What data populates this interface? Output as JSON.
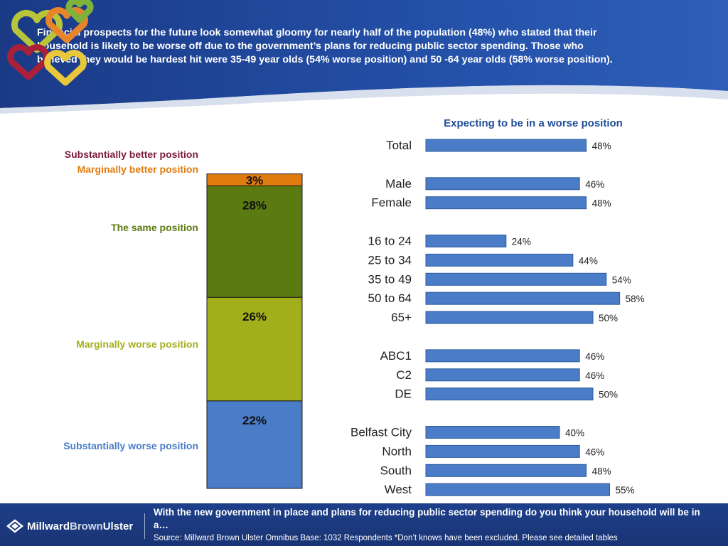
{
  "header": {
    "headline": "Financial prospects for the future look somewhat gloomy for nearly half of the population (48%) who stated that their household is likely to be worse off due to the government’s plans for reducing public sector spending.  Those who believed they would be hardest hit were 35-49 year olds (54% worse position) and 50 -64 year olds (58% worse position)."
  },
  "colors": {
    "substantially_better": "#7b1a3a",
    "marginally_better": "#e07b10",
    "same": "#5b7a12",
    "marginally_worse": "#a3af1a",
    "substantially_worse": "#4a7cc7",
    "bar_fill": "#4a7cc7",
    "header_blue": "#1d3f8a"
  },
  "chart_data": [
    {
      "type": "bar",
      "orientation": "stacked-vertical",
      "categories": [
        "Substantially worse position",
        "Marginally worse position",
        "The same position",
        "Marginally better position",
        "Substantially better position"
      ],
      "values": [
        22,
        26,
        28,
        3,
        0
      ],
      "value_labels": [
        "22%",
        "26%",
        "28%",
        "3%",
        ""
      ],
      "legend_labels": [
        "Substantially worse position",
        "Marginally worse position",
        "The same position",
        "Marginally better position",
        "Substantially better position"
      ],
      "legend": "left"
    },
    {
      "type": "bar",
      "orientation": "horizontal",
      "title": "Expecting to be in a worse position",
      "groups": [
        {
          "categories": [
            "Total"
          ],
          "values": [
            48
          ]
        },
        {
          "categories": [
            "Male",
            "Female"
          ],
          "values": [
            46,
            48
          ]
        },
        {
          "categories": [
            "16 to 24",
            "25 to 34",
            "35 to 49",
            "50 to 64",
            "65+"
          ],
          "values": [
            24,
            44,
            54,
            58,
            50
          ]
        },
        {
          "categories": [
            "ABC1",
            "C2",
            "DE"
          ],
          "values": [
            46,
            46,
            50
          ]
        },
        {
          "categories": [
            "Belfast City",
            "North",
            "South",
            "West"
          ],
          "values": [
            40,
            46,
            48,
            55
          ]
        }
      ],
      "value_labels": [
        "48%",
        "46%",
        "48%",
        "24%",
        "44%",
        "54%",
        "58%",
        "50%",
        "46%",
        "46%",
        "50%",
        "40%",
        "46%",
        "48%",
        "55%"
      ],
      "grid": false
    }
  ],
  "footer": {
    "brand_part1": "Millward",
    "brand_part2": "Brown",
    "brand_part3": "Ulster",
    "question": "With the new government in place and plans for reducing public sector spending do you think your household will be in a…",
    "source": "Source: Millward Brown Ulster Omnibus  Base: 1032 Respondents  *Don’t knows have been excluded.  Please see detailed tables"
  }
}
